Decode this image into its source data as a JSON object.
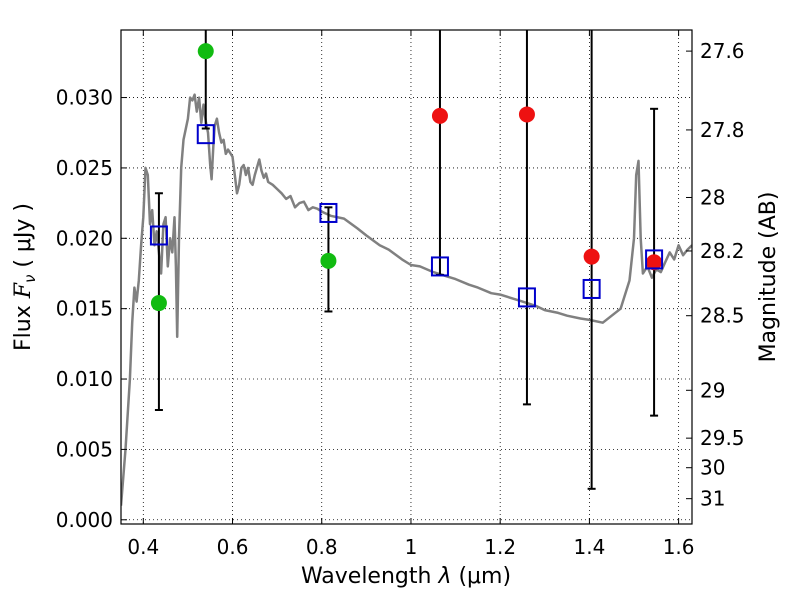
{
  "chart_data": {
    "type": "scatter",
    "xlabel_prefix": "Wavelength  ",
    "xlabel_lambda": "λ",
    "xlabel_unit": " (μm)",
    "ylabel_prefix": "Flux  ",
    "ylabel_symbol": "F",
    "ylabel_subscript": "ν",
    "ylabel_unit": "  ( μJy )",
    "y2label": "Magnitude (AB)",
    "xlim": [
      0.35,
      1.63
    ],
    "ylim": [
      -0.0003,
      0.0348
    ],
    "grid": true,
    "x_ticks": [
      0.4,
      0.6,
      0.8,
      1.0,
      1.2,
      1.4,
      1.6
    ],
    "x_tick_labels": [
      "0.4",
      "0.6",
      "0.8",
      "1",
      "1.2",
      "1.4",
      "1.6"
    ],
    "y_ticks": [
      0.0,
      0.005,
      0.01,
      0.015,
      0.02,
      0.025,
      0.03
    ],
    "y_tick_labels": [
      "0.000",
      "0.005",
      "0.010",
      "0.015",
      "0.020",
      "0.025",
      "0.030"
    ],
    "y2_tick_labels": [
      "27.6",
      "27.8",
      "28",
      "28.2",
      "28.5",
      "29",
      "29.5",
      "30",
      "31"
    ],
    "y2_tick_flux": [
      0.0333,
      0.0277,
      0.0229,
      0.0191,
      0.0145,
      0.0092,
      0.0058,
      0.0037,
      0.0015
    ],
    "colors": {
      "model": "#808080",
      "green": "#11bb11",
      "red": "#ee1111",
      "square": "#0000cc",
      "errorbar": "#000000"
    },
    "model_spectrum": [
      [
        0.35,
        0.001
      ],
      [
        0.36,
        0.005
      ],
      [
        0.37,
        0.01
      ],
      [
        0.375,
        0.014
      ],
      [
        0.38,
        0.0165
      ],
      [
        0.385,
        0.0155
      ],
      [
        0.39,
        0.017
      ],
      [
        0.395,
        0.0195
      ],
      [
        0.4,
        0.0215
      ],
      [
        0.405,
        0.025
      ],
      [
        0.41,
        0.0245
      ],
      [
        0.415,
        0.021
      ],
      [
        0.42,
        0.022
      ],
      [
        0.425,
        0.0195
      ],
      [
        0.43,
        0.0205
      ],
      [
        0.435,
        0.019
      ],
      [
        0.44,
        0.0175
      ],
      [
        0.445,
        0.021
      ],
      [
        0.45,
        0.0215
      ],
      [
        0.455,
        0.018
      ],
      [
        0.46,
        0.02
      ],
      [
        0.465,
        0.019
      ],
      [
        0.47,
        0.0215
      ],
      [
        0.473,
        0.018
      ],
      [
        0.476,
        0.013
      ],
      [
        0.48,
        0.02
      ],
      [
        0.485,
        0.025
      ],
      [
        0.49,
        0.027
      ],
      [
        0.5,
        0.0285
      ],
      [
        0.505,
        0.03
      ],
      [
        0.51,
        0.0298
      ],
      [
        0.515,
        0.0302
      ],
      [
        0.52,
        0.029
      ],
      [
        0.525,
        0.03
      ],
      [
        0.53,
        0.0282
      ],
      [
        0.535,
        0.0295
      ],
      [
        0.54,
        0.0283
      ],
      [
        0.545,
        0.0275
      ],
      [
        0.55,
        0.0252
      ],
      [
        0.553,
        0.0242
      ],
      [
        0.557,
        0.0265
      ],
      [
        0.56,
        0.028
      ],
      [
        0.565,
        0.0285
      ],
      [
        0.57,
        0.0275
      ],
      [
        0.575,
        0.0268
      ],
      [
        0.58,
        0.027
      ],
      [
        0.585,
        0.026
      ],
      [
        0.59,
        0.0263
      ],
      [
        0.6,
        0.0258
      ],
      [
        0.605,
        0.0245
      ],
      [
        0.61,
        0.0232
      ],
      [
        0.615,
        0.0238
      ],
      [
        0.62,
        0.025
      ],
      [
        0.625,
        0.0252
      ],
      [
        0.63,
        0.0245
      ],
      [
        0.635,
        0.025
      ],
      [
        0.64,
        0.024
      ],
      [
        0.645,
        0.0238
      ],
      [
        0.65,
        0.0245
      ],
      [
        0.66,
        0.0256
      ],
      [
        0.665,
        0.0248
      ],
      [
        0.67,
        0.0243
      ],
      [
        0.675,
        0.0246
      ],
      [
        0.68,
        0.024
      ],
      [
        0.69,
        0.0238
      ],
      [
        0.7,
        0.0235
      ],
      [
        0.71,
        0.0232
      ],
      [
        0.72,
        0.0228
      ],
      [
        0.73,
        0.023
      ],
      [
        0.74,
        0.0222
      ],
      [
        0.75,
        0.0225
      ],
      [
        0.76,
        0.0226
      ],
      [
        0.77,
        0.022
      ],
      [
        0.78,
        0.0222
      ],
      [
        0.79,
        0.0221
      ],
      [
        0.8,
        0.0219
      ],
      [
        0.82,
        0.0216
      ],
      [
        0.85,
        0.0214
      ],
      [
        0.88,
        0.0207
      ],
      [
        0.9,
        0.0202
      ],
      [
        0.93,
        0.0195
      ],
      [
        0.95,
        0.0192
      ],
      [
        0.98,
        0.0185
      ],
      [
        1.0,
        0.0181
      ],
      [
        1.02,
        0.018
      ],
      [
        1.05,
        0.0176
      ],
      [
        1.08,
        0.0173
      ],
      [
        1.1,
        0.0171
      ],
      [
        1.13,
        0.0167
      ],
      [
        1.15,
        0.0165
      ],
      [
        1.18,
        0.0161
      ],
      [
        1.2,
        0.016
      ],
      [
        1.23,
        0.0157
      ],
      [
        1.25,
        0.0155
      ],
      [
        1.28,
        0.0152
      ],
      [
        1.3,
        0.0149
      ],
      [
        1.33,
        0.0147
      ],
      [
        1.35,
        0.0145
      ],
      [
        1.38,
        0.0143
      ],
      [
        1.4,
        0.0142
      ],
      [
        1.43,
        0.014
      ],
      [
        1.45,
        0.0145
      ],
      [
        1.47,
        0.015
      ],
      [
        1.49,
        0.017
      ],
      [
        1.5,
        0.02
      ],
      [
        1.505,
        0.0245
      ],
      [
        1.51,
        0.0255
      ],
      [
        1.515,
        0.02
      ],
      [
        1.52,
        0.0175
      ],
      [
        1.53,
        0.018
      ],
      [
        1.54,
        0.0172
      ],
      [
        1.55,
        0.0178
      ],
      [
        1.56,
        0.0176
      ],
      [
        1.57,
        0.0183
      ],
      [
        1.58,
        0.019
      ],
      [
        1.59,
        0.0185
      ],
      [
        1.6,
        0.0195
      ],
      [
        1.61,
        0.0188
      ],
      [
        1.62,
        0.0192
      ],
      [
        1.63,
        0.0195
      ]
    ],
    "series": [
      {
        "marker": "circle",
        "color": "green",
        "points": [
          {
            "x": 0.435,
            "y": 0.0154
          },
          {
            "x": 0.54,
            "y": 0.0333
          },
          {
            "x": 0.815,
            "y": 0.0184
          }
        ]
      },
      {
        "marker": "circle",
        "color": "red",
        "points": [
          {
            "x": 1.065,
            "y": 0.0287
          },
          {
            "x": 1.26,
            "y": 0.0288
          },
          {
            "x": 1.405,
            "y": 0.0187
          },
          {
            "x": 1.545,
            "y": 0.0183
          }
        ]
      },
      {
        "marker": "square",
        "color": "square",
        "points": [
          {
            "x": 0.435,
            "y": 0.0202,
            "ylo": 0.0078,
            "yhi": 0.0232
          },
          {
            "x": 0.54,
            "y": 0.0274,
            "ylo": 0.0278,
            "yhi": 0.0352
          },
          {
            "x": 0.815,
            "y": 0.0218,
            "ylo": 0.0148,
            "yhi": 0.0222
          },
          {
            "x": 1.065,
            "y": 0.018,
            "ylo": 0.0174,
            "yhi": 0.0352
          },
          {
            "x": 1.26,
            "y": 0.0158,
            "ylo": 0.0082,
            "yhi": 0.0352
          },
          {
            "x": 1.405,
            "y": 0.0164,
            "ylo": 0.0022,
            "yhi": 0.0352
          },
          {
            "x": 1.545,
            "y": 0.0185,
            "ylo": 0.0074,
            "yhi": 0.0292
          }
        ]
      }
    ]
  }
}
